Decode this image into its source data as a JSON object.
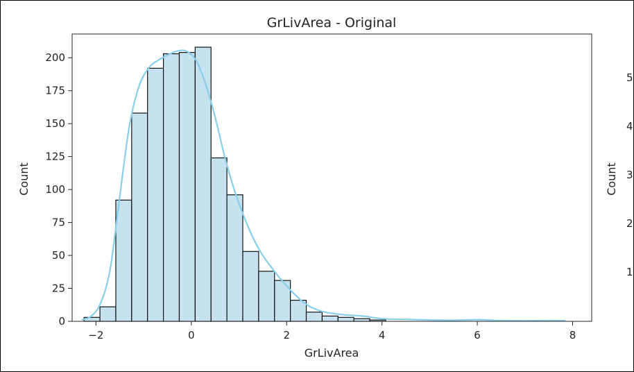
{
  "chart_data": [
    {
      "type": "bar",
      "subtype": "histogram-with-kde",
      "title": "GrLivArea - Original",
      "xlabel": "GrLivArea",
      "ylabel": "Count",
      "xlim": [
        -2.5,
        8.4
      ],
      "ylim": [
        0,
        218
      ],
      "xticks": [
        -2,
        0,
        2,
        4,
        6,
        8
      ],
      "xtick_labels": [
        "−2",
        "0",
        "2",
        "4",
        "6",
        "8"
      ],
      "yticks": [
        0,
        25,
        50,
        75,
        100,
        125,
        150,
        175,
        200
      ],
      "yticks_labels": [
        "0",
        "25",
        "50",
        "75",
        "100",
        "125",
        "150",
        "175",
        "200"
      ],
      "grid": false,
      "bar_color": "#c6e2ef",
      "edge_color": "#111111",
      "kde_color": "#87ceeb",
      "bin_edges": [
        -2.25,
        -1.917,
        -1.584,
        -1.251,
        -0.918,
        -0.585,
        -0.252,
        0.081,
        0.414,
        0.747,
        1.08,
        1.413,
        1.746,
        2.079,
        2.412,
        2.745,
        3.078,
        3.411,
        3.744,
        4.077,
        4.41,
        4.743,
        5.076,
        5.409,
        5.742,
        6.075,
        6.408,
        6.741,
        7.074,
        7.407,
        7.74,
        8.073
      ],
      "counts": [
        3,
        11,
        92,
        158,
        192,
        203,
        204,
        208,
        124,
        96,
        53,
        38,
        31,
        16,
        7,
        4,
        3,
        2,
        1,
        0,
        0,
        0,
        0,
        0,
        0,
        0,
        0,
        0,
        0,
        0,
        0
      ],
      "kde": {
        "x": [
          -2.3,
          -2.1,
          -1.9,
          -1.7,
          -1.5,
          -1.3,
          -1.1,
          -0.9,
          -0.7,
          -0.5,
          -0.3,
          -0.1,
          0.1,
          0.3,
          0.5,
          0.7,
          0.9,
          1.1,
          1.3,
          1.5,
          1.7,
          1.9,
          2.1,
          2.3,
          2.5,
          2.8,
          3.2,
          3.6,
          4.0,
          4.5,
          5.0,
          5.5,
          6.0,
          6.5,
          7.0,
          7.5,
          7.85
        ],
        "y": [
          1,
          4,
          14,
          40,
          95,
          148,
          178,
          192,
          198,
          202,
          205,
          205,
          198,
          180,
          155,
          125,
          100,
          80,
          63,
          50,
          40,
          31,
          23,
          16,
          11,
          7,
          5,
          4,
          2,
          1.5,
          1,
          0.8,
          1.2,
          0.6,
          0.4,
          0.6,
          0.5
        ]
      }
    },
    {
      "type": "bar",
      "partial": true,
      "ylabel": "Count",
      "ytick_labels_visible": [
        "5",
        "4",
        "3",
        "2",
        "1"
      ]
    }
  ]
}
